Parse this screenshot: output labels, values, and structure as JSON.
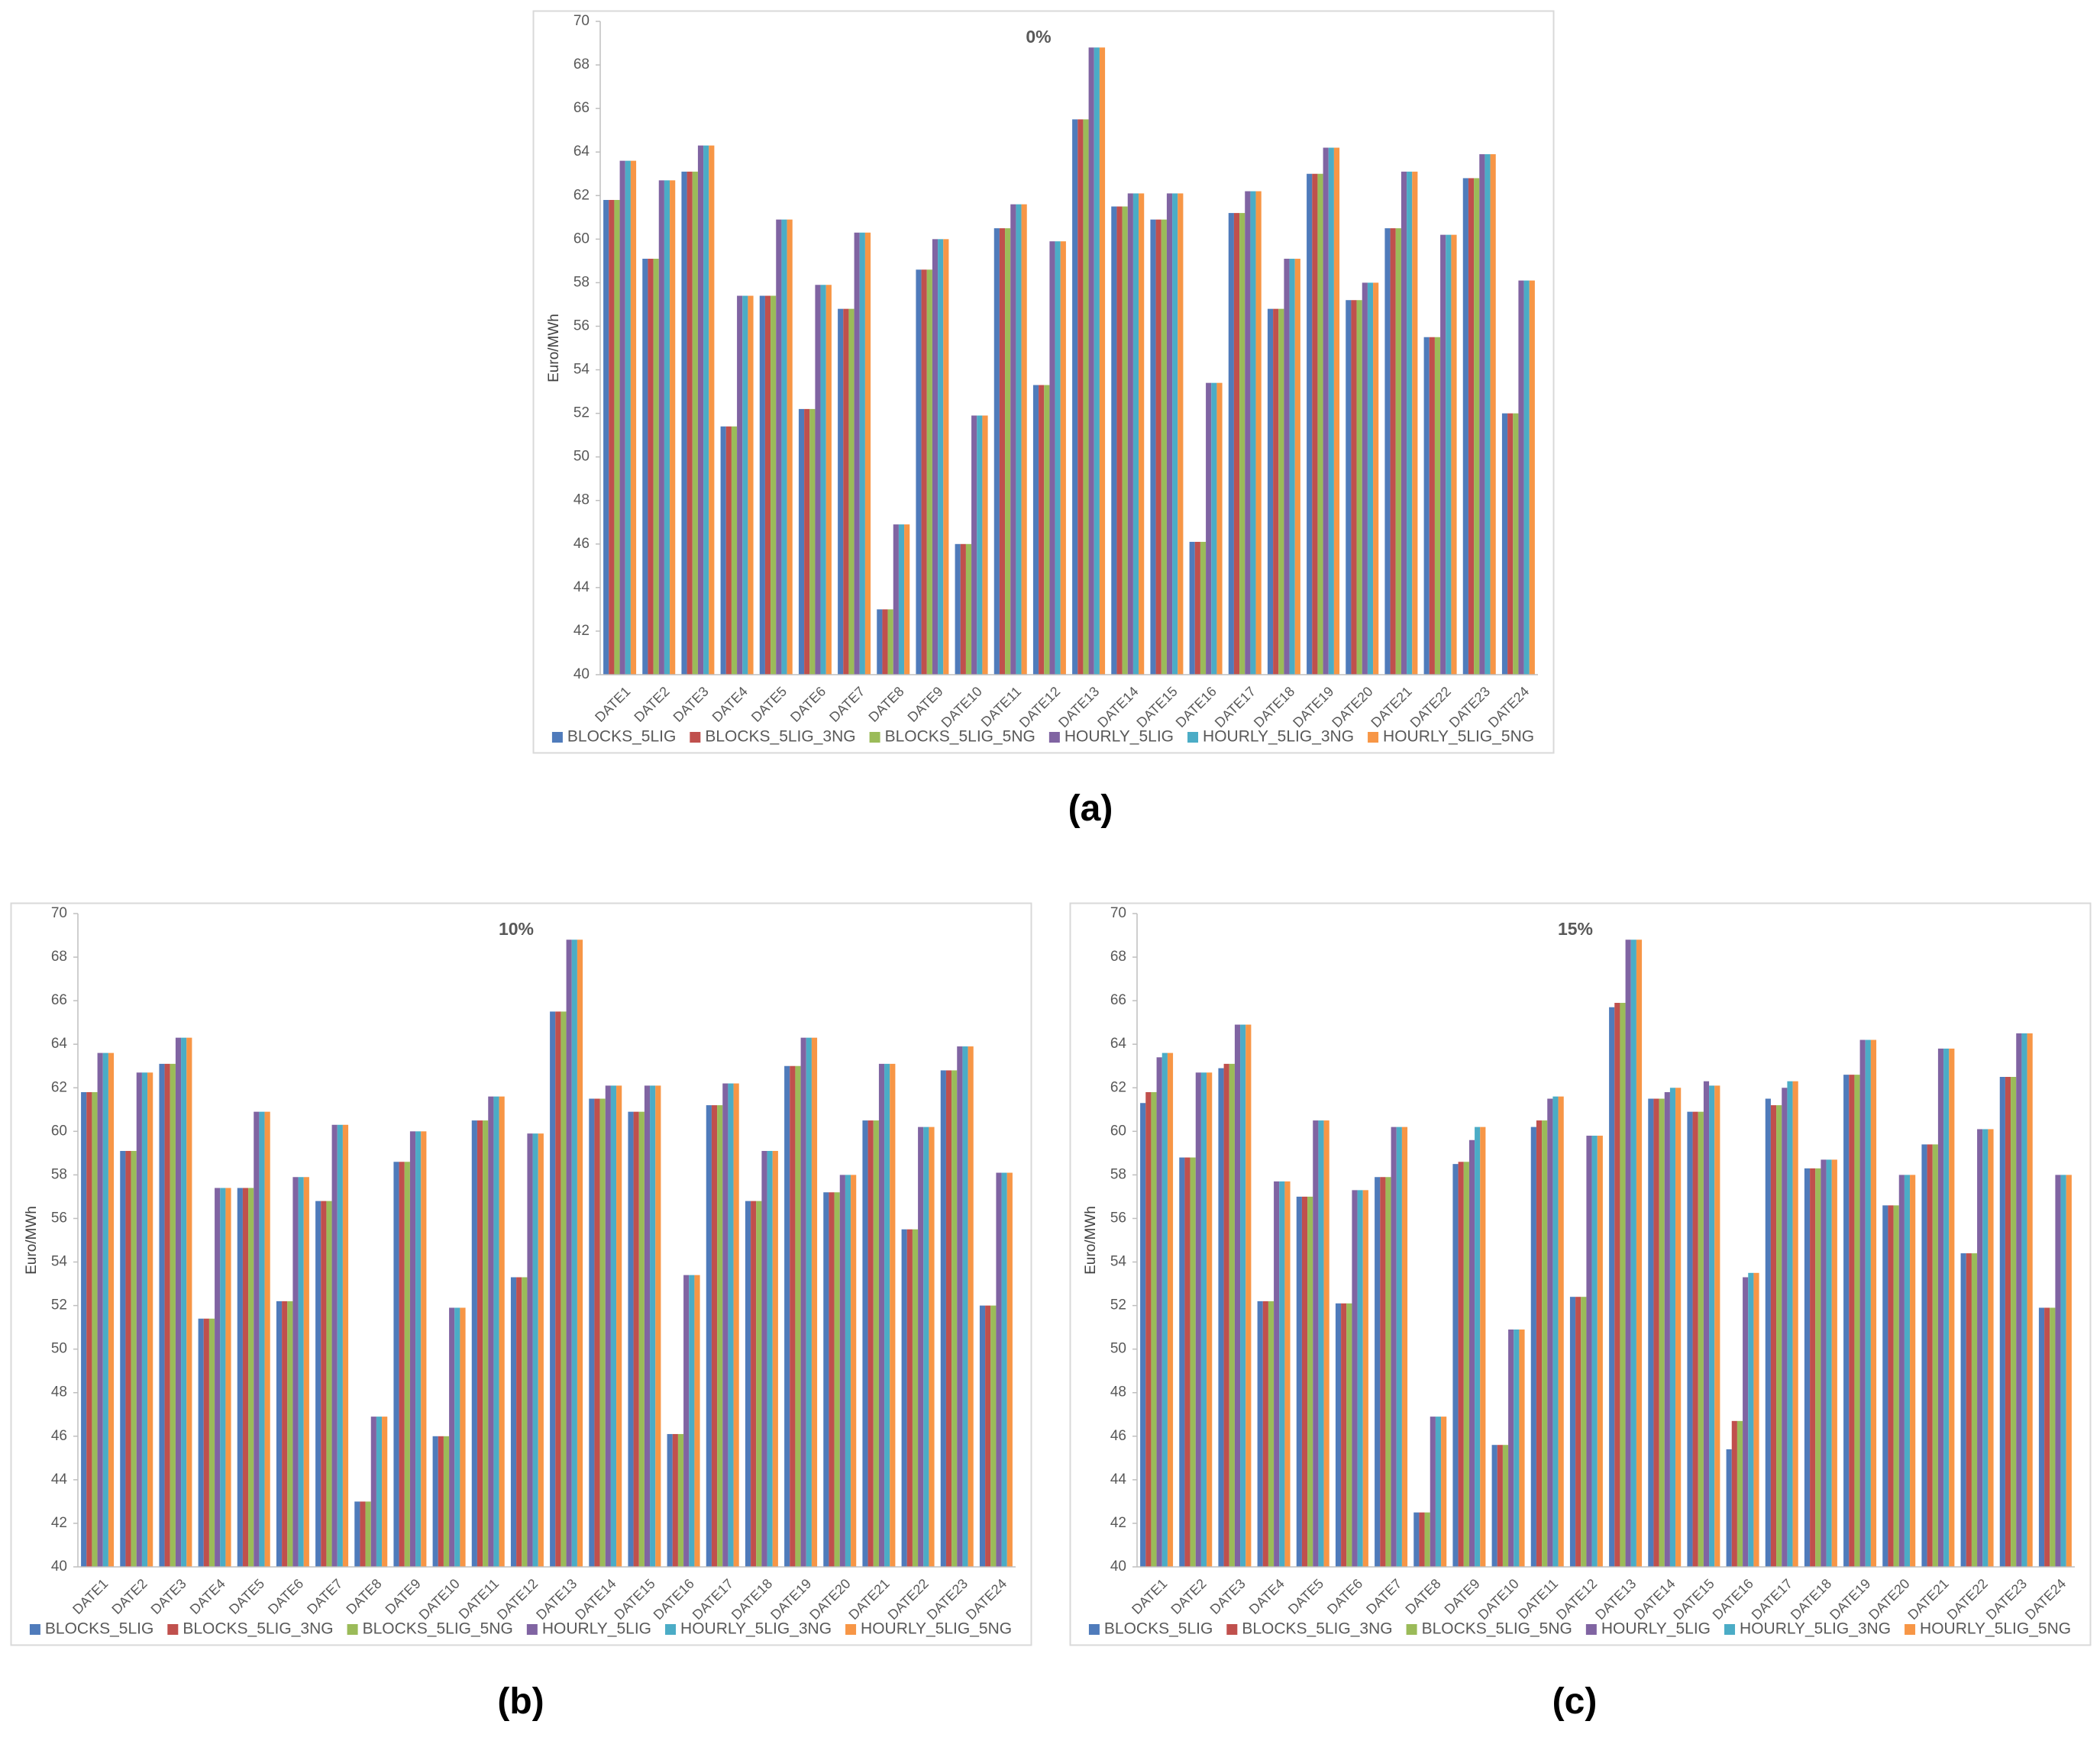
{
  "panel_labels": [
    "(a)",
    "(b)",
    "(c)"
  ],
  "chart_data": [
    {
      "type": "bar",
      "title": "0%",
      "y_label": "Euro/MWh",
      "ylim": [
        40,
        70
      ],
      "yticks": [
        40,
        42,
        44,
        46,
        48,
        50,
        52,
        54,
        56,
        58,
        60,
        62,
        64,
        66,
        68,
        70
      ],
      "categories": [
        "DATE1",
        "DATE2",
        "DATE3",
        "DATE4",
        "DATE5",
        "DATE6",
        "DATE7",
        "DATE8",
        "DATE9",
        "DATE10",
        "DATE11",
        "DATE12",
        "DATE13",
        "DATE14",
        "DATE15",
        "DATE16",
        "DATE17",
        "DATE18",
        "DATE19",
        "DATE20",
        "DATE21",
        "DATE22",
        "DATE23",
        "DATE24"
      ],
      "series": [
        {
          "name": "BLOCKS_5LIG",
          "color": "#4f7bbb",
          "values": [
            61.8,
            59.1,
            63.1,
            51.4,
            57.4,
            52.2,
            56.8,
            43.0,
            58.6,
            46.0,
            60.5,
            53.3,
            65.5,
            61.5,
            60.9,
            46.1,
            61.2,
            56.8,
            63.0,
            57.2,
            60.5,
            55.5,
            62.8,
            52.0
          ]
        },
        {
          "name": "BLOCKS_5LIG_3NG",
          "color": "#c0504d",
          "values": [
            61.8,
            59.1,
            63.1,
            51.4,
            57.4,
            52.2,
            56.8,
            43.0,
            58.6,
            46.0,
            60.5,
            53.3,
            65.5,
            61.5,
            60.9,
            46.1,
            61.2,
            56.8,
            63.0,
            57.2,
            60.5,
            55.5,
            62.8,
            52.0
          ]
        },
        {
          "name": "BLOCKS_5LIG_5NG",
          "color": "#9bbb59",
          "values": [
            61.8,
            59.1,
            63.1,
            51.4,
            57.4,
            52.2,
            56.8,
            43.0,
            58.6,
            46.0,
            60.5,
            53.3,
            65.5,
            61.5,
            60.9,
            46.1,
            61.2,
            56.8,
            63.0,
            57.2,
            60.5,
            55.5,
            62.8,
            52.0
          ]
        },
        {
          "name": "HOURLY_5LIG",
          "color": "#8064a2",
          "values": [
            63.6,
            62.7,
            64.3,
            57.4,
            60.9,
            57.9,
            60.3,
            46.9,
            60.0,
            51.9,
            61.6,
            59.9,
            68.8,
            62.1,
            62.1,
            53.4,
            62.2,
            59.1,
            64.2,
            58.0,
            63.1,
            60.2,
            63.9,
            58.1
          ]
        },
        {
          "name": "HOURLY_5LIG_3NG",
          "color": "#4bacc6",
          "values": [
            63.6,
            62.7,
            64.3,
            57.4,
            60.9,
            57.9,
            60.3,
            46.9,
            60.0,
            51.9,
            61.6,
            59.9,
            68.8,
            62.1,
            62.1,
            53.4,
            62.2,
            59.1,
            64.2,
            58.0,
            63.1,
            60.2,
            63.9,
            58.1
          ]
        },
        {
          "name": "HOURLY_5LIG_5NG",
          "color": "#f79646",
          "values": [
            63.6,
            62.7,
            64.3,
            57.4,
            60.9,
            57.9,
            60.3,
            46.9,
            60.0,
            51.9,
            61.6,
            59.9,
            68.8,
            62.1,
            62.1,
            53.4,
            62.2,
            59.1,
            64.2,
            58.0,
            63.1,
            60.2,
            63.9,
            58.1
          ]
        }
      ]
    },
    {
      "type": "bar",
      "title": "10%",
      "y_label": "Euro/MWh",
      "ylim": [
        40,
        70
      ],
      "yticks": [
        40,
        42,
        44,
        46,
        48,
        50,
        52,
        54,
        56,
        58,
        60,
        62,
        64,
        66,
        68,
        70
      ],
      "categories": [
        "DATE1",
        "DATE2",
        "DATE3",
        "DATE4",
        "DATE5",
        "DATE6",
        "DATE7",
        "DATE8",
        "DATE9",
        "DATE10",
        "DATE11",
        "DATE12",
        "DATE13",
        "DATE14",
        "DATE15",
        "DATE16",
        "DATE17",
        "DATE18",
        "DATE19",
        "DATE20",
        "DATE21",
        "DATE22",
        "DATE23",
        "DATE24"
      ],
      "series": [
        {
          "name": "BLOCKS_5LIG",
          "color": "#4f7bbb",
          "values": [
            61.8,
            59.1,
            63.1,
            51.4,
            57.4,
            52.2,
            56.8,
            43.0,
            58.6,
            46.0,
            60.5,
            53.3,
            65.5,
            61.5,
            60.9,
            46.1,
            61.2,
            56.8,
            63.0,
            57.2,
            60.5,
            55.5,
            62.8,
            52.0
          ]
        },
        {
          "name": "BLOCKS_5LIG_3NG",
          "color": "#c0504d",
          "values": [
            61.8,
            59.1,
            63.1,
            51.4,
            57.4,
            52.2,
            56.8,
            43.0,
            58.6,
            46.0,
            60.5,
            53.3,
            65.5,
            61.5,
            60.9,
            46.1,
            61.2,
            56.8,
            63.0,
            57.2,
            60.5,
            55.5,
            62.8,
            52.0
          ]
        },
        {
          "name": "BLOCKS_5LIG_5NG",
          "color": "#9bbb59",
          "values": [
            61.8,
            59.1,
            63.1,
            51.4,
            57.4,
            52.2,
            56.8,
            43.0,
            58.6,
            46.0,
            60.5,
            53.3,
            65.5,
            61.5,
            60.9,
            46.1,
            61.2,
            56.8,
            63.0,
            57.2,
            60.5,
            55.5,
            62.8,
            52.0
          ]
        },
        {
          "name": "HOURLY_5LIG",
          "color": "#8064a2",
          "values": [
            63.6,
            62.7,
            64.3,
            57.4,
            60.9,
            57.9,
            60.3,
            46.9,
            60.0,
            51.9,
            61.6,
            59.9,
            68.8,
            62.1,
            62.1,
            53.4,
            62.2,
            59.1,
            64.3,
            58.0,
            63.1,
            60.2,
            63.9,
            58.1
          ]
        },
        {
          "name": "HOURLY_5LIG_3NG",
          "color": "#4bacc6",
          "values": [
            63.6,
            62.7,
            64.3,
            57.4,
            60.9,
            57.9,
            60.3,
            46.9,
            60.0,
            51.9,
            61.6,
            59.9,
            68.8,
            62.1,
            62.1,
            53.4,
            62.2,
            59.1,
            64.3,
            58.0,
            63.1,
            60.2,
            63.9,
            58.1
          ]
        },
        {
          "name": "HOURLY_5LIG_5NG",
          "color": "#f79646",
          "values": [
            63.6,
            62.7,
            64.3,
            57.4,
            60.9,
            57.9,
            60.3,
            46.9,
            60.0,
            51.9,
            61.6,
            59.9,
            68.8,
            62.1,
            62.1,
            53.4,
            62.2,
            59.1,
            64.3,
            58.0,
            63.1,
            60.2,
            63.9,
            58.1
          ]
        }
      ]
    },
    {
      "type": "bar",
      "title": "15%",
      "y_label": "Euro/MWh",
      "ylim": [
        40,
        70
      ],
      "yticks": [
        40,
        42,
        44,
        46,
        48,
        50,
        52,
        54,
        56,
        58,
        60,
        62,
        64,
        66,
        68,
        70
      ],
      "categories": [
        "DATE1",
        "DATE2",
        "DATE3",
        "DATE4",
        "DATE5",
        "DATE6",
        "DATE7",
        "DATE8",
        "DATE9",
        "DATE10",
        "DATE11",
        "DATE12",
        "DATE13",
        "DATE14",
        "DATE15",
        "DATE16",
        "DATE17",
        "DATE18",
        "DATE19",
        "DATE20",
        "DATE21",
        "DATE22",
        "DATE23",
        "DATE24"
      ],
      "series": [
        {
          "name": "BLOCKS_5LIG",
          "color": "#4f7bbb",
          "values": [
            61.3,
            58.8,
            62.9,
            52.2,
            57.0,
            52.1,
            57.9,
            42.5,
            58.5,
            45.6,
            60.2,
            52.4,
            65.7,
            61.5,
            60.9,
            45.4,
            61.5,
            58.3,
            62.6,
            56.6,
            59.4,
            54.4,
            62.5,
            51.9
          ]
        },
        {
          "name": "BLOCKS_5LIG_3NG",
          "color": "#c0504d",
          "values": [
            61.8,
            58.8,
            63.1,
            52.2,
            57.0,
            52.1,
            57.9,
            42.5,
            58.6,
            45.6,
            60.5,
            52.4,
            65.9,
            61.5,
            60.9,
            46.7,
            61.2,
            58.3,
            62.6,
            56.6,
            59.4,
            54.4,
            62.5,
            51.9
          ]
        },
        {
          "name": "BLOCKS_5LIG_5NG",
          "color": "#9bbb59",
          "values": [
            61.8,
            58.8,
            63.1,
            52.2,
            57.0,
            52.1,
            57.9,
            42.5,
            58.6,
            45.6,
            60.5,
            52.4,
            65.9,
            61.5,
            60.9,
            46.7,
            61.2,
            58.3,
            62.6,
            56.6,
            59.4,
            54.4,
            62.5,
            51.9
          ]
        },
        {
          "name": "HOURLY_5LIG",
          "color": "#8064a2",
          "values": [
            63.4,
            62.7,
            64.9,
            57.7,
            60.5,
            57.3,
            60.2,
            46.9,
            59.6,
            50.9,
            61.5,
            59.8,
            68.8,
            61.8,
            62.3,
            53.3,
            62.0,
            58.7,
            64.2,
            58.0,
            63.8,
            60.1,
            64.5,
            58.0
          ]
        },
        {
          "name": "HOURLY_5LIG_3NG",
          "color": "#4bacc6",
          "values": [
            63.6,
            62.7,
            64.9,
            57.7,
            60.5,
            57.3,
            60.2,
            46.9,
            60.2,
            50.9,
            61.6,
            59.8,
            68.8,
            62.0,
            62.1,
            53.5,
            62.3,
            58.7,
            64.2,
            58.0,
            63.8,
            60.1,
            64.5,
            58.0
          ]
        },
        {
          "name": "HOURLY_5LIG_5NG",
          "color": "#f79646",
          "values": [
            63.6,
            62.7,
            64.9,
            57.7,
            60.5,
            57.3,
            60.2,
            46.9,
            60.2,
            50.9,
            61.6,
            59.8,
            68.8,
            62.0,
            62.1,
            53.5,
            62.3,
            58.7,
            64.2,
            58.0,
            63.8,
            60.1,
            64.5,
            58.0
          ]
        }
      ]
    }
  ]
}
